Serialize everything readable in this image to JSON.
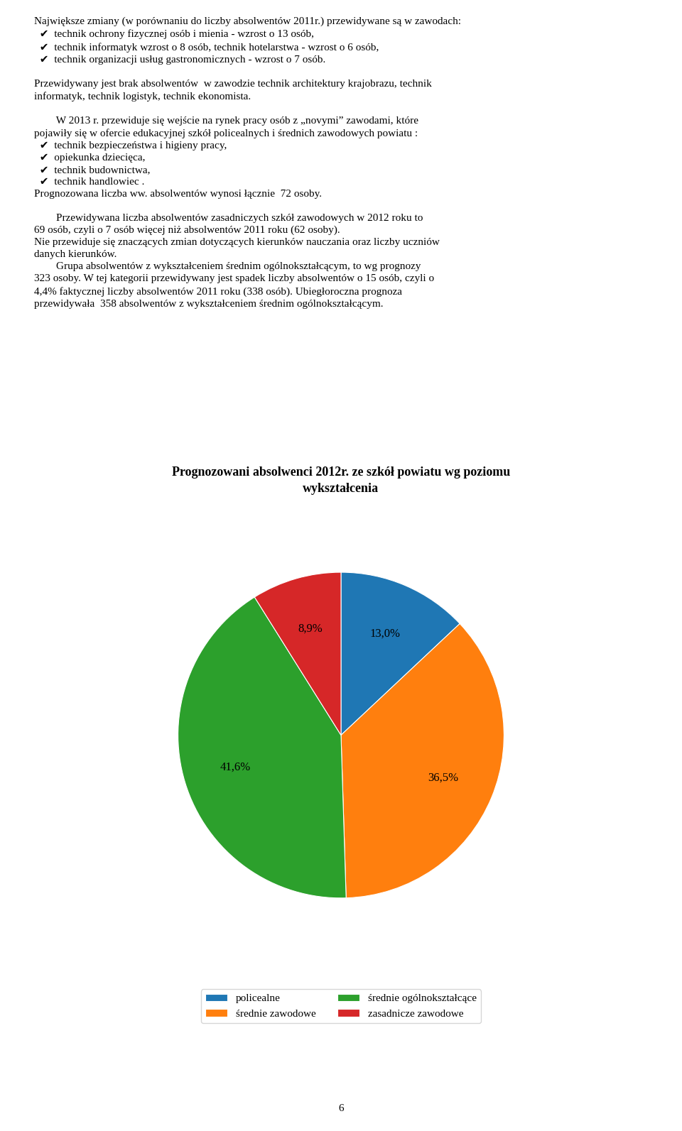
{
  "chart_data": {
    "type": "pie",
    "title": "Prognozowani absolwenci 2012r. ze szkół powiatu wg poziomu\nwykształcenia",
    "categories": [
      "policealne",
      "średnie zawodowe",
      "średnie ogólnokształcące",
      "zasadnicze zawodowe"
    ],
    "values": [
      13.0,
      36.5,
      41.6,
      8.9
    ],
    "value_labels": [
      "13,0%",
      "36,5%",
      "41,6%",
      "8,9%"
    ],
    "data_labels": true,
    "legend": "lower center",
    "annotations": [
      "Największe zmiany (w porównaniu do liczby absolwentów 2011r.) przewidywane są w zawodach:\n  ✔  technik ochrony fizycznej osób i mienia - wzrost o 13 osób,\n  ✔  technik informatyk wzrost o 8 osób, technik hotelarstwa - wzrost o 6 osób,\n  ✔  technik organizacji usług gastronomicznych - wzrost o 7 osób.\n\nPrzewidywany jest brak absolwentów  w zawodzie technik architektury krajobrazu, technik\ninformatyk, technik logistyk, technik ekonomista.\n\n        W 2013 r. przewiduje się wejście na rynek pracy osób z „novymi” zawodami, które\npojawiły się w ofercie edukacyjnej szkół policealnych i średnich zawodowych powiatu :\n  ✔  technik bezpieczeństwa i higieny pracy,\n  ✔  opiekunka dziecięca,\n  ✔  technik budownictwa,\n  ✔  technik handlowiec .\nPrognozowana liczba ww. absolwentów wynosi łącznie  72 osoby.\n\n        Przewidywana liczba absolwentów zasadniczych szkół zawodowych w 2012 roku to\n69 osób, czyli o 7 osób więcej niż absolwentów 2011 roku (62 osoby).\nNie przewiduje się znaczących zmian dotyczących kierunków nauczania oraz liczby uczniów\ndanych kierunków.\n        Grupa absolwentów z wykształceniem średnim ogólnokształcącym, to wg prognozy\n323 osoby. W tej kategorii przewidywany jest spadek liczby absolwentów o 15 osób, czyli o\n4,4% faktycznej liczby absolwentów 2011 roku (338 osób). Ubiegłoroczna prognoza\nprzewidywała  358 absolwentów z wykształceniem średnim ogólnokształcącym.",
      "6"
    ]
  }
}
